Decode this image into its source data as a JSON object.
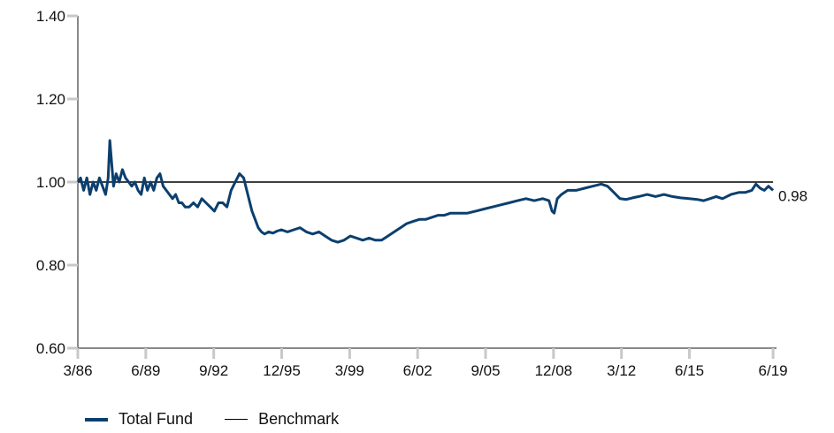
{
  "chart_data": {
    "type": "line",
    "title": "",
    "xlabel": "",
    "ylabel": "",
    "ylim": [
      0.6,
      1.4
    ],
    "yticks": [
      "0.60",
      "0.80",
      "1.00",
      "1.20",
      "1.40"
    ],
    "xlim": [
      1986.17,
      2019.5
    ],
    "xticks": [
      {
        "label": "3/86",
        "x": 1986.17
      },
      {
        "label": "6/89",
        "x": 1989.42
      },
      {
        "label": "9/92",
        "x": 1992.67
      },
      {
        "label": "12/95",
        "x": 1995.92
      },
      {
        "label": "3/99",
        "x": 1999.17
      },
      {
        "label": "6/02",
        "x": 2002.42
      },
      {
        "label": "9/05",
        "x": 2005.67
      },
      {
        "label": "12/08",
        "x": 2008.92
      },
      {
        "label": "3/12",
        "x": 2012.17
      },
      {
        "label": "6/15",
        "x": 2015.42
      },
      {
        "label": "6/19",
        "x": 2019.42
      }
    ],
    "grid": false,
    "legend_position": "bottom-left",
    "end_label": "0.98",
    "series": [
      {
        "name": "Total Fund",
        "color": "#0b3f6e",
        "x": [
          1986.17,
          1986.3,
          1986.45,
          1986.6,
          1986.75,
          1986.9,
          1987.05,
          1987.2,
          1987.35,
          1987.5,
          1987.62,
          1987.7,
          1987.78,
          1987.88,
          1988.0,
          1988.15,
          1988.3,
          1988.45,
          1988.6,
          1988.75,
          1988.9,
          1989.05,
          1989.2,
          1989.35,
          1989.5,
          1989.65,
          1989.8,
          1989.95,
          1990.1,
          1990.25,
          1990.4,
          1990.55,
          1990.7,
          1990.85,
          1991.0,
          1991.15,
          1991.3,
          1991.5,
          1991.7,
          1991.9,
          1992.1,
          1992.3,
          1992.5,
          1992.7,
          1992.9,
          1993.1,
          1993.3,
          1993.5,
          1993.7,
          1993.9,
          1994.1,
          1994.3,
          1994.5,
          1994.65,
          1994.8,
          1994.95,
          1995.1,
          1995.3,
          1995.5,
          1995.7,
          1995.9,
          1996.2,
          1996.5,
          1996.8,
          1997.1,
          1997.4,
          1997.7,
          1998.0,
          1998.3,
          1998.6,
          1998.9,
          1999.2,
          1999.5,
          1999.8,
          2000.1,
          2000.4,
          2000.7,
          2001.0,
          2001.3,
          2001.6,
          2001.9,
          2002.2,
          2002.5,
          2002.8,
          2003.1,
          2003.4,
          2003.7,
          2004.0,
          2004.4,
          2004.8,
          2005.2,
          2005.6,
          2006.0,
          2006.4,
          2006.8,
          2007.2,
          2007.6,
          2008.0,
          2008.4,
          2008.7,
          2008.85,
          2008.95,
          2009.1,
          2009.3,
          2009.6,
          2010.0,
          2010.4,
          2010.8,
          2011.2,
          2011.5,
          2011.8,
          2012.1,
          2012.4,
          2012.7,
          2013.0,
          2013.4,
          2013.8,
          2014.2,
          2014.6,
          2015.0,
          2015.4,
          2015.8,
          2016.1,
          2016.4,
          2016.7,
          2017.0,
          2017.4,
          2017.8,
          2018.1,
          2018.4,
          2018.6,
          2018.8,
          2019.0,
          2019.2,
          2019.42
        ],
        "y": [
          1.0,
          1.01,
          0.98,
          1.01,
          0.97,
          1.0,
          0.98,
          1.01,
          0.99,
          0.97,
          1.01,
          1.1,
          1.05,
          0.99,
          1.02,
          1.0,
          1.03,
          1.01,
          1.0,
          0.99,
          1.0,
          0.98,
          0.97,
          1.01,
          0.98,
          1.0,
          0.98,
          1.01,
          1.02,
          0.99,
          0.98,
          0.97,
          0.96,
          0.97,
          0.95,
          0.95,
          0.94,
          0.94,
          0.95,
          0.94,
          0.96,
          0.95,
          0.94,
          0.93,
          0.95,
          0.95,
          0.94,
          0.98,
          1.0,
          1.02,
          1.01,
          0.97,
          0.93,
          0.91,
          0.89,
          0.88,
          0.875,
          0.88,
          0.877,
          0.882,
          0.885,
          0.88,
          0.885,
          0.89,
          0.88,
          0.875,
          0.88,
          0.87,
          0.86,
          0.855,
          0.86,
          0.87,
          0.865,
          0.86,
          0.865,
          0.86,
          0.86,
          0.87,
          0.88,
          0.89,
          0.9,
          0.905,
          0.91,
          0.91,
          0.915,
          0.92,
          0.92,
          0.925,
          0.925,
          0.925,
          0.93,
          0.935,
          0.94,
          0.945,
          0.95,
          0.955,
          0.96,
          0.955,
          0.96,
          0.955,
          0.93,
          0.925,
          0.96,
          0.97,
          0.98,
          0.98,
          0.985,
          0.99,
          0.995,
          0.99,
          0.975,
          0.96,
          0.958,
          0.962,
          0.965,
          0.97,
          0.965,
          0.97,
          0.965,
          0.962,
          0.96,
          0.958,
          0.955,
          0.96,
          0.965,
          0.96,
          0.97,
          0.975,
          0.975,
          0.98,
          0.995,
          0.985,
          0.98,
          0.99,
          0.98
        ]
      },
      {
        "name": "Benchmark",
        "color": "#000000",
        "x": [
          1986.17,
          2019.42
        ],
        "y": [
          1.0,
          1.0
        ]
      }
    ]
  }
}
